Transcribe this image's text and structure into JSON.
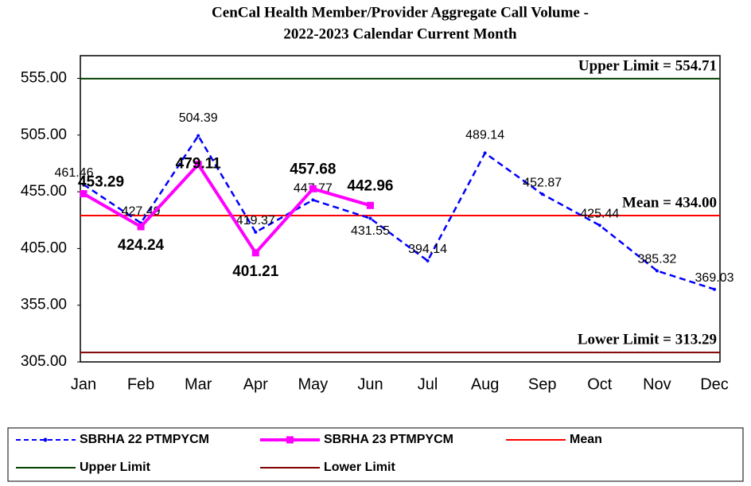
{
  "chart_data": {
    "type": "line",
    "title": [
      "CenCal Health Member/Provider Aggregate Call Volume -",
      "2022-2023 Calendar Current Month"
    ],
    "categories": [
      "Jan",
      "Feb",
      "Mar",
      "Apr",
      "May",
      "Jun",
      "Jul",
      "Aug",
      "Sep",
      "Oct",
      "Nov",
      "Dec"
    ],
    "series": [
      {
        "name": "SBRHA 22 PTMPYCM",
        "color": "#0000ff",
        "values": [
          461.46,
          427.49,
          504.39,
          419.37,
          447.77,
          431.55,
          394.14,
          489.14,
          452.87,
          425.44,
          385.32,
          369.03
        ]
      },
      {
        "name": "SBRHA 23 PTMPYCM",
        "color": "#ff00ff",
        "values": [
          453.29,
          424.24,
          479.11,
          401.21,
          457.68,
          442.96,
          null,
          null,
          null,
          null,
          null,
          null
        ]
      }
    ],
    "reference_lines": [
      {
        "name": "Mean",
        "color": "#ff0000",
        "value": 434.0,
        "annotation": "Mean = 434.00"
      },
      {
        "name": "Upper Limit",
        "color": "#004000",
        "value": 554.71,
        "annotation": "Upper Limit = 554.71"
      },
      {
        "name": "Lower Limit",
        "color": "#800000",
        "value": 313.29,
        "annotation": "Lower Limit = 313.29"
      }
    ],
    "ylim": [
      305,
      575
    ],
    "yticks": [
      {
        "value": 305,
        "label": "305.00"
      },
      {
        "value": 355,
        "label": "355.00"
      },
      {
        "value": 405,
        "label": "405.00"
      },
      {
        "value": 455,
        "label": "455.00"
      },
      {
        "value": 505,
        "label": "505.00"
      },
      {
        "value": 555,
        "label": "555.00"
      }
    ],
    "grid": false,
    "legend": "bottom"
  }
}
